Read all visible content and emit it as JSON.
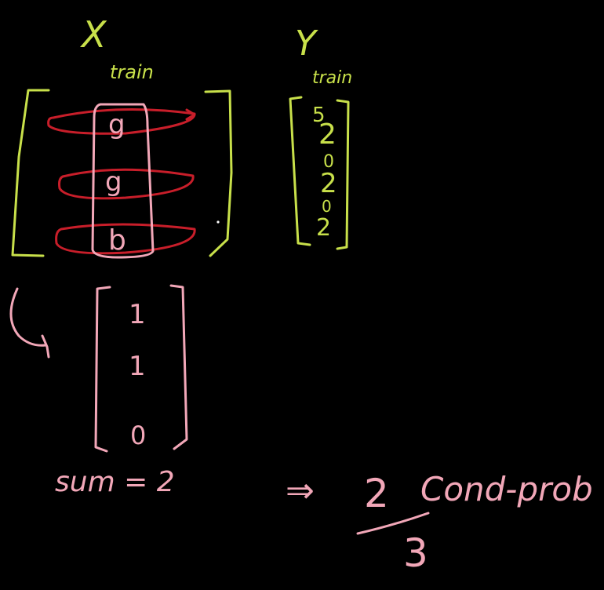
{
  "colors": {
    "background": "#000000",
    "green": "#c8e04a",
    "red": "#c81e2a",
    "pink": "#f2a7b8"
  },
  "x_train": {
    "label": "X",
    "subscript": "train",
    "column_values": [
      "g",
      "g",
      "b"
    ]
  },
  "y_train": {
    "label": "Y",
    "subscript": "train",
    "values": [
      "5",
      "2",
      "0",
      "2",
      "0",
      "2"
    ]
  },
  "mask_vector": {
    "values": [
      "1",
      "1",
      "0"
    ]
  },
  "sum_text": "sum = 2",
  "result": {
    "arrow": "⇒",
    "numerator": "2",
    "denominator": "3",
    "label": "Cond-prob"
  }
}
